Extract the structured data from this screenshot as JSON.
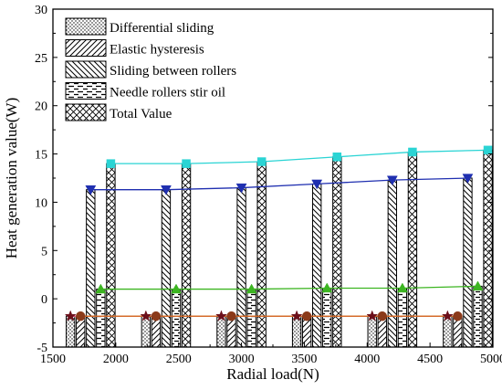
{
  "chart_data": {
    "type": "bar",
    "title": "",
    "xlabel": "Radial load(N)",
    "ylabel": "Heat generation value(W)",
    "xlim": [
      1500,
      5000
    ],
    "ylim": [
      -5,
      30
    ],
    "x_ticks": [
      1500,
      2000,
      2500,
      3000,
      3500,
      4000,
      4500,
      5000
    ],
    "y_ticks": [
      -5,
      0,
      5,
      10,
      15,
      20,
      25,
      30
    ],
    "grid": false,
    "legend_position": "top-left",
    "categories": [
      1800,
      2400,
      3000,
      3600,
      4200,
      4800
    ],
    "series": [
      {
        "name": "Differential sliding",
        "pattern": "dots",
        "values": [
          -1.8,
          -1.8,
          -1.8,
          -1.8,
          -1.8,
          -1.8
        ],
        "marker": "star",
        "marker_color": "#6b0f1a",
        "line_color": "#e75480"
      },
      {
        "name": "Elastic hysteresis",
        "pattern": "forward-diagonal",
        "values": [
          -1.8,
          -1.8,
          -1.8,
          -1.8,
          -1.8,
          -1.8
        ],
        "marker": "circle",
        "marker_color": "#8b3a1a",
        "line_color": "#d2691e"
      },
      {
        "name": "Sliding between rollers",
        "pattern": "back-diagonal",
        "values": [
          11.3,
          11.3,
          11.5,
          11.9,
          12.3,
          12.5
        ],
        "marker": "triangle-down",
        "marker_color": "#1f2fb0",
        "line_color": "#1f2fb0"
      },
      {
        "name": "Needle rollers stir oil",
        "pattern": "dashes",
        "values": [
          1.0,
          1.0,
          1.0,
          1.1,
          1.1,
          1.3
        ],
        "marker": "triangle-up",
        "marker_color": "#3cb521",
        "line_color": "#3cb521"
      },
      {
        "name": "Total Value",
        "pattern": "crosshatch",
        "values": [
          14.0,
          14.0,
          14.2,
          14.7,
          15.2,
          15.4
        ],
        "marker": "square",
        "marker_color": "#2ad4d4",
        "line_color": "#2ad4d4"
      }
    ]
  }
}
